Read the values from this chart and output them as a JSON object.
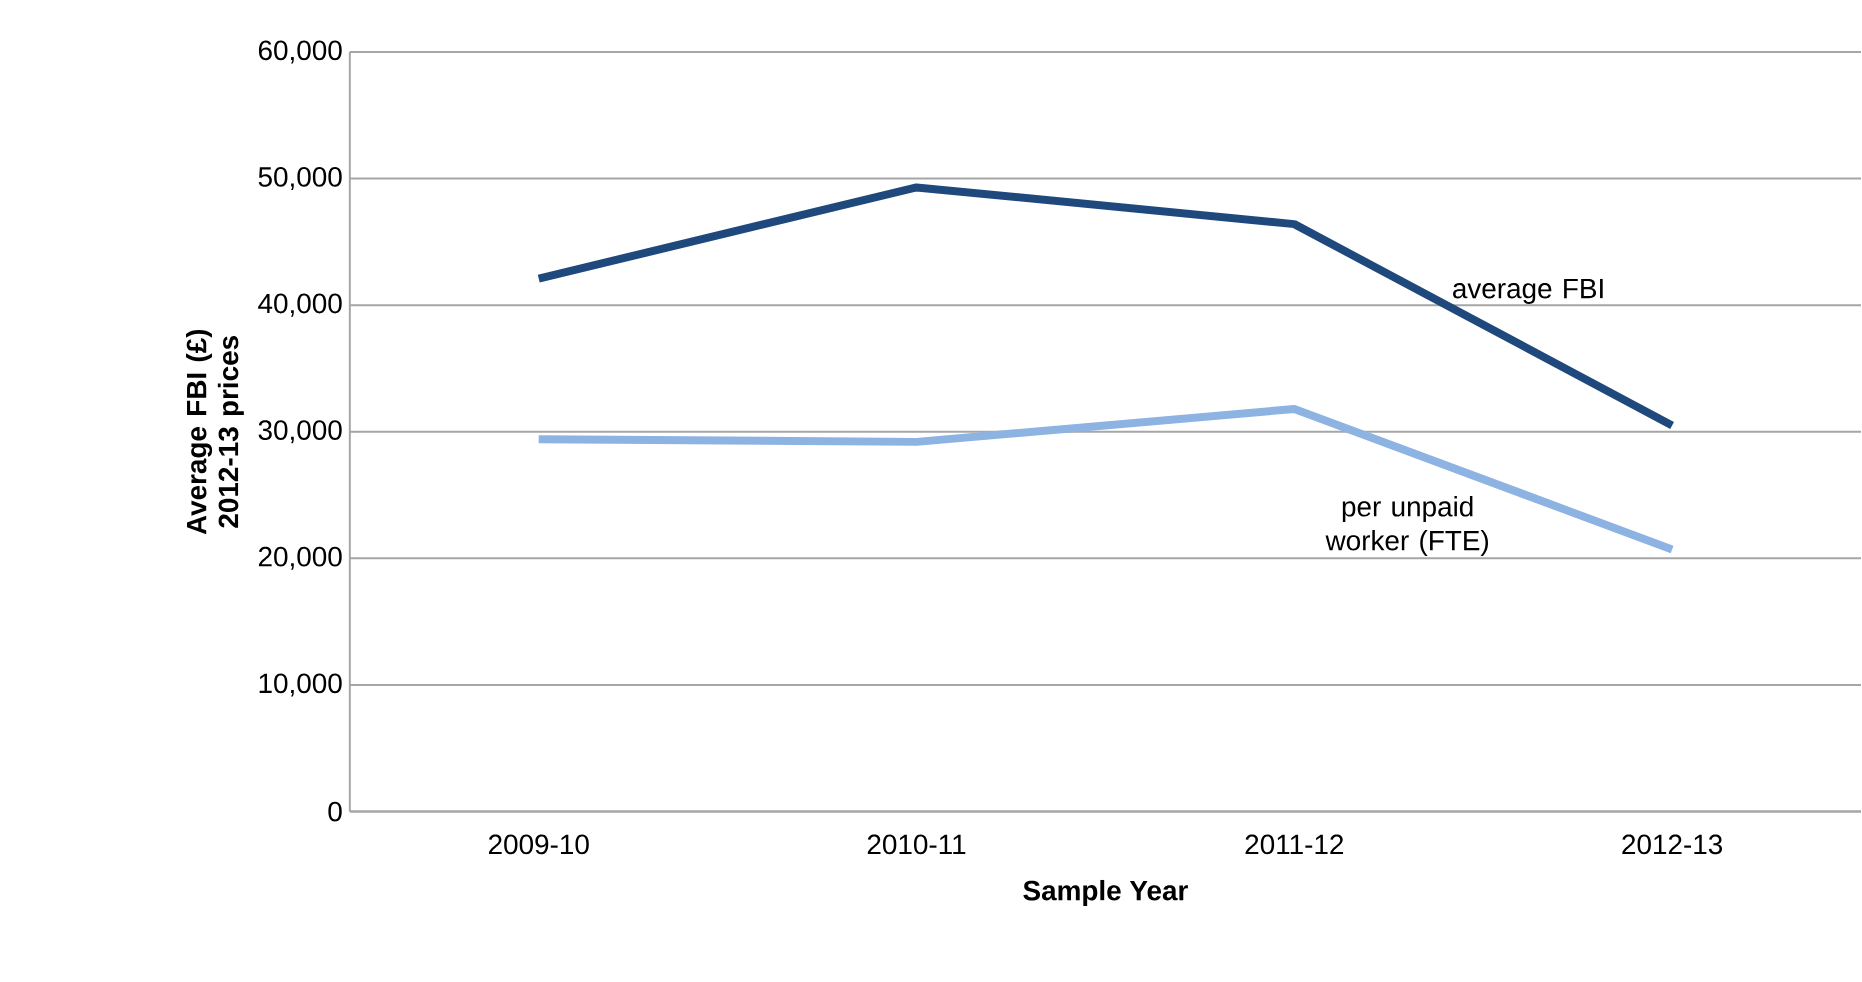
{
  "chart_data": {
    "type": "line",
    "xlabel": "Sample Year",
    "ylabel": "Average FBI (£) 2012-13 prices",
    "categories": [
      "2009-10",
      "2010-11",
      "2011-12",
      "2012-13"
    ],
    "series": [
      {
        "name": "average FBI",
        "color": "#1f497d",
        "values": [
          42100,
          49300,
          46400,
          30500
        ]
      },
      {
        "name": "per unpaid worker (FTE)",
        "color": "#8db3e2",
        "values": [
          29400,
          29200,
          31800,
          20700
        ]
      }
    ],
    "ylim": [
      0,
      60000
    ],
    "yticks": [
      {
        "value": 0,
        "label": "0"
      },
      {
        "value": 10000,
        "label": "10,000"
      },
      {
        "value": 20000,
        "label": "20,000"
      },
      {
        "value": 30000,
        "label": "30,000"
      },
      {
        "value": 40000,
        "label": "40,000"
      },
      {
        "value": 50000,
        "label": "50,000"
      },
      {
        "value": 60000,
        "label": "60,000"
      }
    ],
    "grid": "y",
    "marker": "none",
    "line_style": "solid"
  }
}
